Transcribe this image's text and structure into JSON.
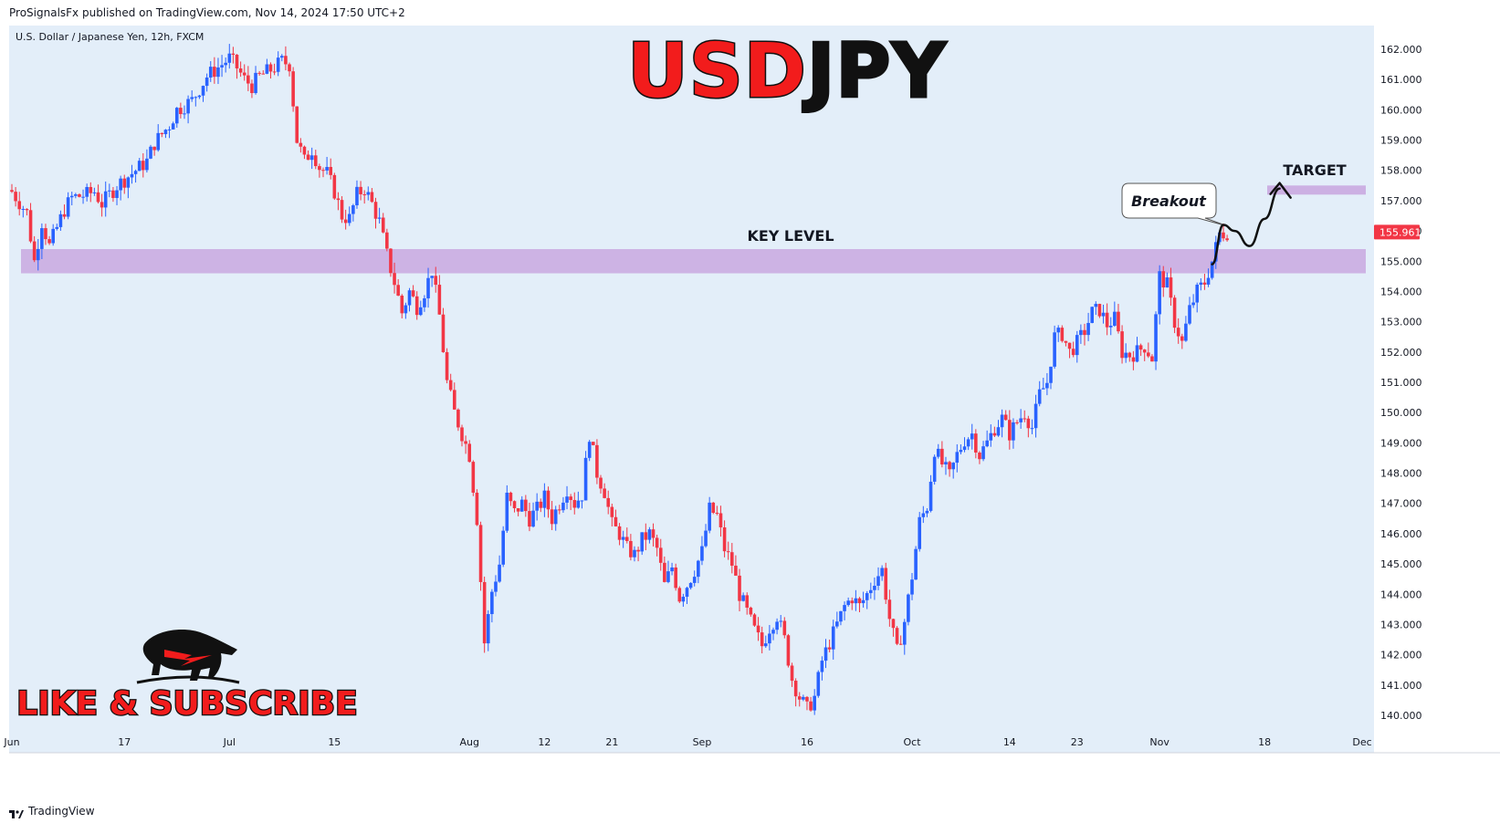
{
  "header": {
    "publisher_line": "ProSignalsFx published on TradingView.com, Nov 14, 2024 17:50 UTC+2"
  },
  "footer": {
    "brand": "TradingView"
  },
  "chart_data": {
    "type": "candlestick",
    "symbol_label": "U.S. Dollar / Japanese Yen, 12h, FXCM",
    "title_red": "USD",
    "title_black": "JPY",
    "key_level_label": "KEY LEVEL",
    "target_label": "TARGET",
    "breakout_label": "Breakout",
    "like_label": "LIKE & SUBSCRIBE",
    "last_price_label": "155.961",
    "ylim": [
      139.3,
      162.6
    ],
    "y_ticks": [
      "140.000",
      "141.000",
      "142.000",
      "143.000",
      "144.000",
      "145.000",
      "146.000",
      "147.000",
      "148.000",
      "149.000",
      "150.000",
      "151.000",
      "152.000",
      "153.000",
      "154.000",
      "155.000",
      "156.000",
      "157.000",
      "158.000",
      "159.000",
      "160.000",
      "161.000",
      "162.000"
    ],
    "x_ticks": [
      {
        "label": "Jun",
        "t": 0
      },
      {
        "label": "17",
        "t": 15
      },
      {
        "label": "Jul",
        "t": 29
      },
      {
        "label": "15",
        "t": 43
      },
      {
        "label": "Aug",
        "t": 61
      },
      {
        "label": "12",
        "t": 71
      },
      {
        "label": "21",
        "t": 80
      },
      {
        "label": "Sep",
        "t": 92
      },
      {
        "label": "16",
        "t": 106
      },
      {
        "label": "Oct",
        "t": 120
      },
      {
        "label": "14",
        "t": 133
      },
      {
        "label": "23",
        "t": 142
      },
      {
        "label": "Nov",
        "t": 153
      },
      {
        "label": "18",
        "t": 167
      },
      {
        "label": "Dec",
        "t": 180
      }
    ],
    "x_range_days": [
      0,
      184
    ],
    "key_level_zone": [
      154.6,
      155.4
    ],
    "target_zone": [
      157.2,
      157.5
    ],
    "colors": {
      "up": "#2962ff",
      "down": "#f23645",
      "background": "#e3eef9",
      "zone": "#c9a8e0",
      "title_red": "#f21c1c",
      "price_tag": "#f23645"
    },
    "close_path": [
      [
        0,
        157.3
      ],
      [
        2,
        156.6
      ],
      [
        3,
        155.0
      ],
      [
        4,
        156.3
      ],
      [
        5,
        155.5
      ],
      [
        6,
        156.1
      ],
      [
        7,
        156.7
      ],
      [
        8,
        157.1
      ],
      [
        10,
        157.2
      ],
      [
        11,
        157.3
      ],
      [
        12,
        156.9
      ],
      [
        14,
        157.5
      ],
      [
        16,
        157.9
      ],
      [
        18,
        158.3
      ],
      [
        19,
        158.9
      ],
      [
        21,
        159.5
      ],
      [
        22,
        160.0
      ],
      [
        24,
        160.3
      ],
      [
        25,
        160.7
      ],
      [
        26,
        161.1
      ],
      [
        27,
        161.3
      ],
      [
        28,
        161.5
      ],
      [
        29,
        161.7
      ],
      [
        30,
        161.4
      ],
      [
        31,
        161.0
      ],
      [
        32,
        160.8
      ],
      [
        33,
        161.1
      ],
      [
        35,
        161.4
      ],
      [
        36,
        161.6
      ],
      [
        37,
        161.5
      ],
      [
        38,
        159.0
      ],
      [
        39,
        158.3
      ],
      [
        40,
        158.7
      ],
      [
        41,
        158.1
      ],
      [
        42,
        157.9
      ],
      [
        43,
        157.3
      ],
      [
        44,
        156.5
      ],
      [
        45,
        156.4
      ],
      [
        46,
        157.2
      ],
      [
        47,
        157.4
      ],
      [
        48,
        156.9
      ],
      [
        49,
        156.3
      ],
      [
        50,
        155.2
      ],
      [
        51,
        154.3
      ],
      [
        52,
        153.3
      ],
      [
        53,
        154.0
      ],
      [
        54,
        153.5
      ],
      [
        55,
        154.0
      ],
      [
        56,
        154.7
      ],
      [
        57,
        153.2
      ],
      [
        58,
        151.0
      ],
      [
        59,
        150.0
      ],
      [
        60,
        149.3
      ],
      [
        61,
        148.6
      ],
      [
        62,
        146.5
      ],
      [
        63,
        142.4
      ],
      [
        64,
        144.1
      ],
      [
        65,
        145.0
      ],
      [
        66,
        147.2
      ],
      [
        67,
        146.7
      ],
      [
        68,
        147.0
      ],
      [
        69,
        146.5
      ],
      [
        70,
        146.8
      ],
      [
        71,
        147.2
      ],
      [
        72,
        146.5
      ],
      [
        73,
        147.0
      ],
      [
        74,
        147.5
      ],
      [
        75,
        147.0
      ],
      [
        76,
        147.3
      ],
      [
        77,
        149.3
      ],
      [
        78,
        148.0
      ],
      [
        79,
        147.4
      ],
      [
        80,
        146.3
      ],
      [
        81,
        146.0
      ],
      [
        82,
        145.5
      ],
      [
        83,
        145.3
      ],
      [
        84,
        145.8
      ],
      [
        85,
        146.0
      ],
      [
        86,
        145.5
      ],
      [
        87,
        144.3
      ],
      [
        88,
        144.9
      ],
      [
        89,
        143.9
      ],
      [
        90,
        144.3
      ],
      [
        91,
        144.8
      ],
      [
        92,
        145.4
      ],
      [
        93,
        146.8
      ],
      [
        94,
        146.6
      ],
      [
        95,
        145.5
      ],
      [
        96,
        145.0
      ],
      [
        97,
        144.0
      ],
      [
        98,
        143.4
      ],
      [
        99,
        142.8
      ],
      [
        100,
        142.3
      ],
      [
        101,
        142.9
      ],
      [
        102,
        143.3
      ],
      [
        103,
        142.5
      ],
      [
        104,
        141.2
      ],
      [
        105,
        140.6
      ],
      [
        106,
        140.2
      ],
      [
        107,
        140.6
      ],
      [
        108,
        141.8
      ],
      [
        109,
        142.4
      ],
      [
        110,
        143.0
      ],
      [
        111,
        143.6
      ],
      [
        112,
        143.9
      ],
      [
        113,
        143.6
      ],
      [
        114,
        144.0
      ],
      [
        115,
        144.5
      ],
      [
        116,
        144.8
      ],
      [
        117,
        143.2
      ],
      [
        118,
        142.1
      ],
      [
        119,
        143.1
      ],
      [
        120,
        144.6
      ],
      [
        121,
        146.4
      ],
      [
        122,
        146.9
      ],
      [
        123,
        148.8
      ],
      [
        124,
        148.3
      ],
      [
        125,
        147.9
      ],
      [
        126,
        148.6
      ],
      [
        127,
        149.1
      ],
      [
        128,
        149.3
      ],
      [
        129,
        148.6
      ],
      [
        130,
        149.0
      ],
      [
        131,
        149.5
      ],
      [
        132,
        149.8
      ],
      [
        133,
        149.3
      ],
      [
        134,
        149.7
      ],
      [
        135,
        150.0
      ],
      [
        136,
        149.5
      ],
      [
        137,
        150.6
      ],
      [
        138,
        151.0
      ],
      [
        139,
        152.5
      ],
      [
        140,
        152.6
      ],
      [
        141,
        152.0
      ],
      [
        142,
        152.3
      ],
      [
        143,
        152.7
      ],
      [
        144,
        153.3
      ],
      [
        145,
        153.4
      ],
      [
        146,
        152.9
      ],
      [
        147,
        153.1
      ],
      [
        148,
        152.0
      ],
      [
        149,
        151.9
      ],
      [
        150,
        152.0
      ],
      [
        151,
        152.2
      ],
      [
        152,
        151.8
      ],
      [
        153,
        154.5
      ],
      [
        154,
        154.2
      ],
      [
        155,
        153.0
      ],
      [
        156,
        152.3
      ],
      [
        157,
        153.4
      ],
      [
        158,
        154.0
      ],
      [
        159,
        154.3
      ],
      [
        160,
        155.0
      ],
      [
        161,
        155.9
      ],
      [
        162,
        155.96
      ]
    ],
    "projection": [
      [
        160,
        154.9
      ],
      [
        161.5,
        156.2
      ],
      [
        163,
        156.0
      ],
      [
        165,
        155.5
      ],
      [
        167,
        156.4
      ],
      [
        169,
        157.4
      ]
    ]
  }
}
